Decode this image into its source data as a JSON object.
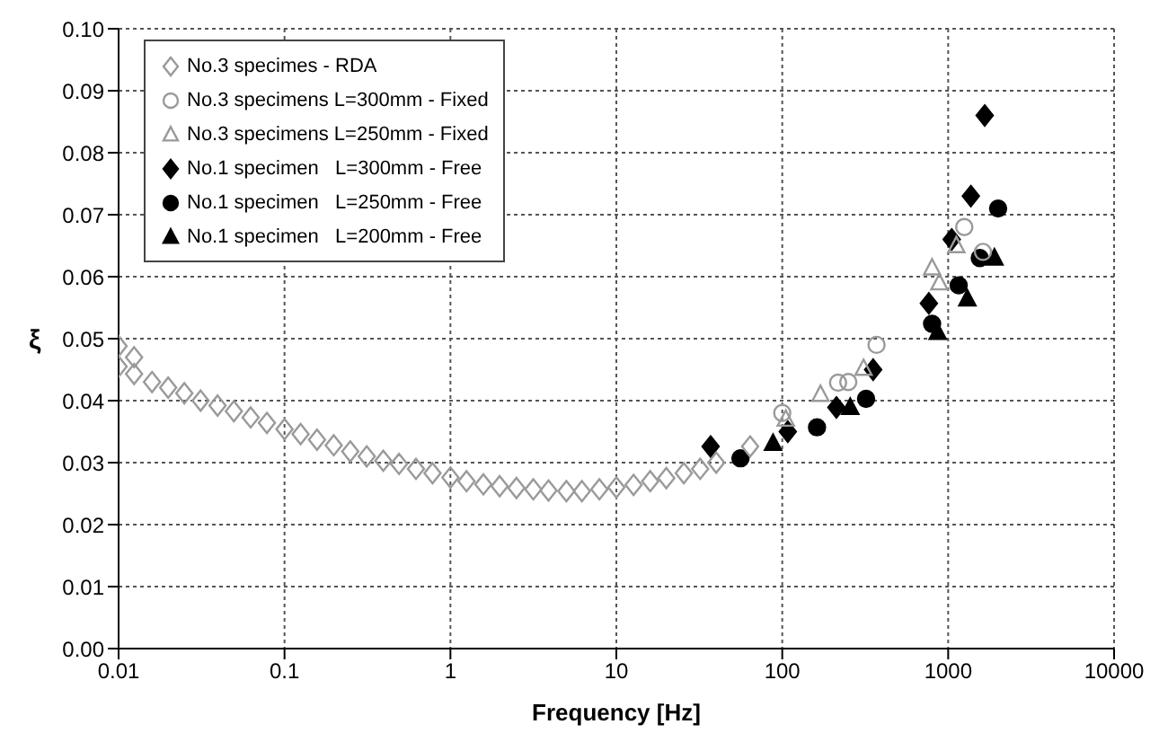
{
  "chart_data": {
    "type": "scatter",
    "xlabel": "Frequency [Hz]",
    "ylabel": "ξ",
    "log": "x",
    "grid": true,
    "legend": "top left",
    "xlim": [
      0.01,
      10000
    ],
    "xticks": [
      0.01,
      0.1,
      1,
      10,
      100,
      1000,
      10000
    ],
    "ylim": [
      0,
      0.1
    ],
    "yticks": [
      {
        "value": 0,
        "label": "0.00"
      },
      {
        "value": 0.01,
        "label": "0.01"
      },
      {
        "value": 0.02,
        "label": "0.02"
      },
      {
        "value": 0.03,
        "label": "0.03"
      },
      {
        "value": 0.04,
        "label": "0.04"
      },
      {
        "value": 0.05,
        "label": "0.05"
      },
      {
        "value": 0.06,
        "label": "0.06"
      },
      {
        "value": 0.07,
        "label": "0.07"
      },
      {
        "value": 0.08,
        "label": "0.08"
      },
      {
        "value": 0.09,
        "label": "0.09"
      },
      {
        "value": 0.1,
        "label": "0.10"
      }
    ],
    "series": [
      {
        "name": "No.3 specimes - RDA",
        "color": "#9a9a9a",
        "marker": "diamond",
        "x": [
          0.01,
          0.01,
          0.0124,
          0.0124,
          0.0159,
          0.0199,
          0.0249,
          0.0312,
          0.0395,
          0.0495,
          0.0625,
          0.0783,
          0.1,
          0.125,
          0.157,
          0.198,
          0.249,
          0.313,
          0.394,
          0.49,
          0.62,
          0.78,
          1,
          1.25,
          1.58,
          1.98,
          2.5,
          3.16,
          3.9,
          5,
          6.2,
          7.9,
          10,
          12.7,
          16,
          20,
          25.5,
          32,
          40,
          64
        ],
        "values": [
          0.0488,
          0.0455,
          0.047,
          0.0443,
          0.043,
          0.0421,
          0.0412,
          0.04,
          0.0392,
          0.0383,
          0.0373,
          0.0364,
          0.0354,
          0.0346,
          0.0337,
          0.0328,
          0.0318,
          0.031,
          0.0303,
          0.0298,
          0.029,
          0.0283,
          0.0276,
          0.027,
          0.0265,
          0.0262,
          0.0259,
          0.0257,
          0.0255,
          0.0254,
          0.0254,
          0.0257,
          0.026,
          0.0264,
          0.027,
          0.0275,
          0.0283,
          0.029,
          0.03,
          0.0326
        ]
      },
      {
        "name": "No.3 specimens L=300mm - Fixed",
        "color": "#9a9a9a",
        "marker": "circle",
        "x": [
          100,
          217,
          250,
          370,
          1250,
          1620
        ],
        "values": [
          0.038,
          0.0429,
          0.043,
          0.049,
          0.068,
          0.064
        ]
      },
      {
        "name": "No.3 specimens L=250mm - Fixed",
        "color": "#9a9a9a",
        "marker": "triangle",
        "x": [
          105,
          170,
          309,
          800,
          885,
          1120
        ],
        "values": [
          0.037,
          0.041,
          0.0452,
          0.0614,
          0.059,
          0.065
        ]
      },
      {
        "name": "No.1 specimen   L=300mm - Free",
        "color": "#000000",
        "marker": "diamond",
        "x": [
          37,
          108,
          212,
          353,
          765,
          1050,
          1370,
          1660
        ],
        "values": [
          0.0326,
          0.035,
          0.0389,
          0.045,
          0.0557,
          0.066,
          0.073,
          0.086
        ]
      },
      {
        "name": "No.1 specimen   L=250mm - Free",
        "color": "#000000",
        "marker": "circle",
        "x": [
          56,
          162,
          320,
          800,
          1157,
          1550,
          2000
        ],
        "values": [
          0.0307,
          0.0357,
          0.0403,
          0.0524,
          0.0586,
          0.063,
          0.071
        ]
      },
      {
        "name": "No.1 specimen   L=200mm - Free",
        "color": "#000000",
        "marker": "triangle",
        "x": [
          88,
          257,
          865,
          1305,
          1900
        ],
        "values": [
          0.0331,
          0.0389,
          0.051,
          0.0564,
          0.063
        ]
      }
    ]
  }
}
